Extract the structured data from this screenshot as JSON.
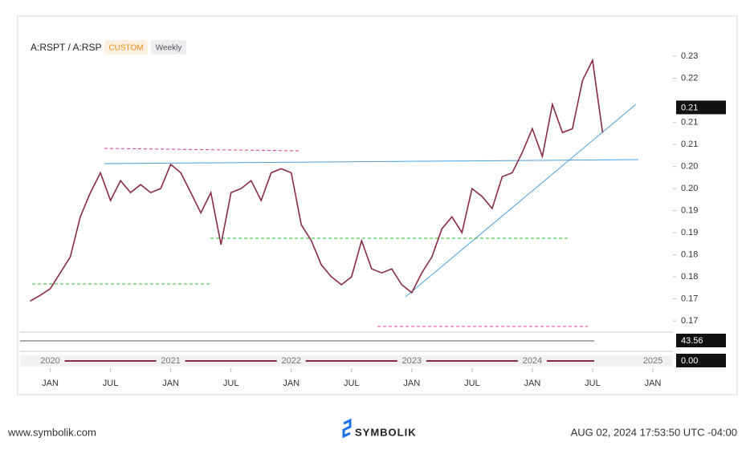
{
  "header": {
    "symbol": "A:RSPT / A:RSP",
    "badge": "CUSTOM",
    "interval": "Weekly"
  },
  "chart_data": {
    "type": "line",
    "color": "#8b2a45",
    "x": [
      "2019-11",
      "2019-12",
      "2020-01",
      "2020-02",
      "2020-03",
      "2020-04",
      "2020-05",
      "2020-06",
      "2020-07",
      "2020-08",
      "2020-09",
      "2020-10",
      "2020-11",
      "2020-12",
      "2021-01",
      "2021-02",
      "2021-03",
      "2021-04",
      "2021-05",
      "2021-06",
      "2021-07",
      "2021-08",
      "2021-09",
      "2021-10",
      "2021-11",
      "2021-12",
      "2022-01",
      "2022-02",
      "2022-03",
      "2022-04",
      "2022-05",
      "2022-06",
      "2022-07",
      "2022-08",
      "2022-09",
      "2022-10",
      "2022-11",
      "2022-12",
      "2023-01",
      "2023-02",
      "2023-03",
      "2023-04",
      "2023-05",
      "2023-06",
      "2023-07",
      "2023-08",
      "2023-09",
      "2023-10",
      "2023-11",
      "2023-12",
      "2024-01",
      "2024-02",
      "2024-03",
      "2024-04",
      "2024-05",
      "2024-06",
      "2024-07",
      "2024-08"
    ],
    "values": [
      0.1705,
      0.1718,
      0.1733,
      0.1769,
      0.1805,
      0.1896,
      0.1951,
      0.1996,
      0.1933,
      0.1978,
      0.1951,
      0.1969,
      0.1951,
      0.196,
      0.2015,
      0.1996,
      0.1951,
      0.1905,
      0.1951,
      0.1833,
      0.1951,
      0.196,
      0.1978,
      0.1933,
      0.1996,
      0.2005,
      0.1996,
      0.1878,
      0.1842,
      0.1787,
      0.176,
      0.1742,
      0.176,
      0.1842,
      0.1778,
      0.1769,
      0.1778,
      0.1742,
      0.1724,
      0.1769,
      0.1805,
      0.1869,
      0.1896,
      0.186,
      0.196,
      0.1942,
      0.1915,
      0.1987,
      0.1996,
      0.2042,
      0.2096,
      0.2033,
      0.2151,
      0.2087,
      0.2096,
      0.2205,
      0.2251,
      0.2087
    ],
    "xlim": [
      "2019-10",
      "2025-03"
    ],
    "xticks": [
      {
        "value": "2020-01",
        "label": "JAN"
      },
      {
        "value": "2020-07",
        "label": "JUL"
      },
      {
        "value": "2021-01",
        "label": "JAN"
      },
      {
        "value": "2021-07",
        "label": "JUL"
      },
      {
        "value": "2022-01",
        "label": "JAN"
      },
      {
        "value": "2022-07",
        "label": "JUL"
      },
      {
        "value": "2023-01",
        "label": "JAN"
      },
      {
        "value": "2023-07",
        "label": "JUL"
      },
      {
        "value": "2024-01",
        "label": "JAN"
      },
      {
        "value": "2024-07",
        "label": "JUL"
      },
      {
        "value": "2025-01",
        "label": "JAN"
      }
    ],
    "years": [
      {
        "value": "2020-01",
        "label": "2020"
      },
      {
        "value": "2021-01",
        "label": "2021"
      },
      {
        "value": "2022-01",
        "label": "2022"
      },
      {
        "value": "2023-01",
        "label": "2023"
      },
      {
        "value": "2024-01",
        "label": "2024"
      },
      {
        "value": "2025-01",
        "label": "2025"
      }
    ],
    "ylim": [
      0.1642,
      0.2324
    ],
    "yticks": [
      {
        "value": 0.166,
        "label": "0.17"
      },
      {
        "value": 0.171,
        "label": "0.17"
      },
      {
        "value": 0.176,
        "label": "0.18"
      },
      {
        "value": 0.181,
        "label": "0.18"
      },
      {
        "value": 0.186,
        "label": "0.19"
      },
      {
        "value": 0.191,
        "label": "0.19"
      },
      {
        "value": 0.196,
        "label": "0.20"
      },
      {
        "value": 0.201,
        "label": "0.20"
      },
      {
        "value": 0.206,
        "label": "0.21"
      },
      {
        "value": 0.211,
        "label": "0.21"
      },
      {
        "value": 0.221,
        "label": "0.22"
      },
      {
        "value": 0.226,
        "label": "0.23"
      }
    ],
    "last_price": {
      "value": 0.2145,
      "label": "0.21"
    },
    "indicator_values": [
      "43.56",
      "0.00"
    ]
  },
  "footer": {
    "site": "www.symbolik.com",
    "brand": "SYMBOLIK",
    "timestamp": "AUG 02, 2024 17:53:50 UTC -04:00"
  }
}
